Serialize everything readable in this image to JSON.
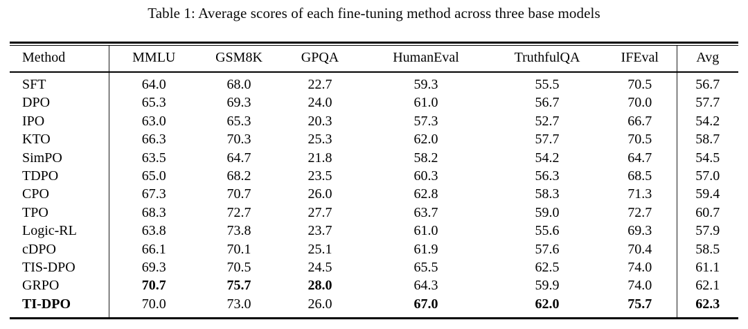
{
  "caption": "Table 1: Average scores of each fine-tuning method across three base models",
  "table": {
    "columns": [
      "Method",
      "MMLU",
      "GSM8K",
      "GPQA",
      "HumanEval",
      "TruthfulQA",
      "IFEval",
      "Avg"
    ],
    "rows": [
      {
        "method": "SFT",
        "bold_method": false,
        "values": [
          "64.0",
          "68.0",
          "22.7",
          "59.3",
          "55.5",
          "70.5",
          "56.7"
        ],
        "bold": [
          false,
          false,
          false,
          false,
          false,
          false,
          false
        ]
      },
      {
        "method": "DPO",
        "bold_method": false,
        "values": [
          "65.3",
          "69.3",
          "24.0",
          "61.0",
          "56.7",
          "70.0",
          "57.7"
        ],
        "bold": [
          false,
          false,
          false,
          false,
          false,
          false,
          false
        ]
      },
      {
        "method": "IPO",
        "bold_method": false,
        "values": [
          "63.0",
          "65.3",
          "20.3",
          "57.3",
          "52.7",
          "66.7",
          "54.2"
        ],
        "bold": [
          false,
          false,
          false,
          false,
          false,
          false,
          false
        ]
      },
      {
        "method": "KTO",
        "bold_method": false,
        "values": [
          "66.3",
          "70.3",
          "25.3",
          "62.0",
          "57.7",
          "70.5",
          "58.7"
        ],
        "bold": [
          false,
          false,
          false,
          false,
          false,
          false,
          false
        ]
      },
      {
        "method": "SimPO",
        "bold_method": false,
        "values": [
          "63.5",
          "64.7",
          "21.8",
          "58.2",
          "54.2",
          "64.7",
          "54.5"
        ],
        "bold": [
          false,
          false,
          false,
          false,
          false,
          false,
          false
        ]
      },
      {
        "method": "TDPO",
        "bold_method": false,
        "values": [
          "65.0",
          "68.2",
          "23.5",
          "60.3",
          "56.3",
          "68.5",
          "57.0"
        ],
        "bold": [
          false,
          false,
          false,
          false,
          false,
          false,
          false
        ]
      },
      {
        "method": "CPO",
        "bold_method": false,
        "values": [
          "67.3",
          "70.7",
          "26.0",
          "62.8",
          "58.3",
          "71.3",
          "59.4"
        ],
        "bold": [
          false,
          false,
          false,
          false,
          false,
          false,
          false
        ]
      },
      {
        "method": "TPO",
        "bold_method": false,
        "values": [
          "68.3",
          "72.7",
          "27.7",
          "63.7",
          "59.0",
          "72.7",
          "60.7"
        ],
        "bold": [
          false,
          false,
          false,
          false,
          false,
          false,
          false
        ]
      },
      {
        "method": "Logic-RL",
        "bold_method": false,
        "values": [
          "63.8",
          "73.8",
          "23.7",
          "61.0",
          "55.6",
          "69.3",
          "57.9"
        ],
        "bold": [
          false,
          false,
          false,
          false,
          false,
          false,
          false
        ]
      },
      {
        "method": "cDPO",
        "bold_method": false,
        "values": [
          "66.1",
          "70.1",
          "25.1",
          "61.9",
          "57.6",
          "70.4",
          "58.5"
        ],
        "bold": [
          false,
          false,
          false,
          false,
          false,
          false,
          false
        ]
      },
      {
        "method": "TIS-DPO",
        "bold_method": false,
        "values": [
          "69.3",
          "70.5",
          "24.5",
          "65.5",
          "62.5",
          "74.0",
          "61.1"
        ],
        "bold": [
          false,
          false,
          false,
          false,
          false,
          false,
          false
        ]
      },
      {
        "method": "GRPO",
        "bold_method": false,
        "values": [
          "70.7",
          "75.7",
          "28.0",
          "64.3",
          "59.9",
          "74.0",
          "62.1"
        ],
        "bold": [
          true,
          true,
          true,
          false,
          false,
          false,
          false
        ]
      },
      {
        "method": "TI-DPO",
        "bold_method": true,
        "values": [
          "70.0",
          "73.0",
          "26.0",
          "67.0",
          "62.0",
          "75.7",
          "62.3"
        ],
        "bold": [
          false,
          false,
          false,
          true,
          true,
          true,
          true
        ]
      }
    ]
  }
}
